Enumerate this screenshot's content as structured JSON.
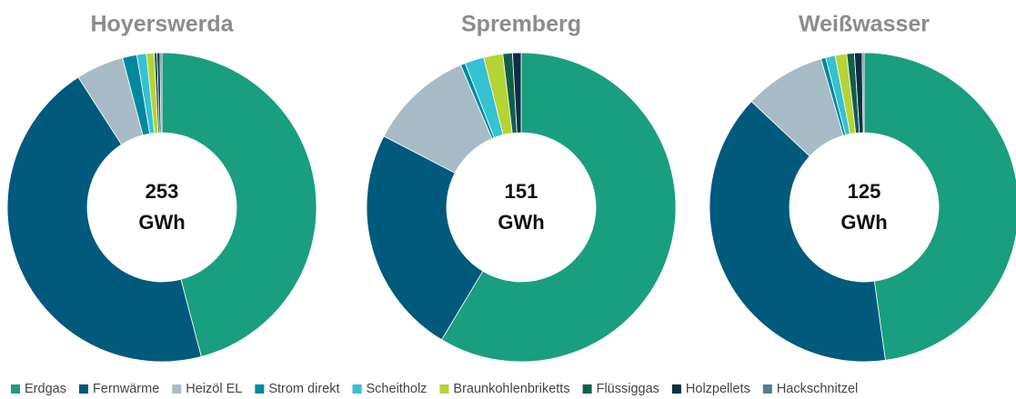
{
  "legend": [
    {
      "name": "Erdgas",
      "color": "#1a9e80"
    },
    {
      "name": "Fernwärme",
      "color": "#005a7c"
    },
    {
      "name": "Heizöl EL",
      "color": "#a7bcc7"
    },
    {
      "name": "Strom direkt",
      "color": "#00889f"
    },
    {
      "name": "Scheitholz",
      "color": "#35c2d2"
    },
    {
      "name": "Braunkohlenbriketts",
      "color": "#b6d436"
    },
    {
      "name": "Flüssiggas",
      "color": "#0f5e4b"
    },
    {
      "name": "Holzpellets",
      "color": "#0b2e44"
    },
    {
      "name": "Hackschnitzel",
      "color": "#5b7b8b"
    }
  ],
  "chart_data": [
    {
      "type": "donut",
      "title": "Hoyerswerda",
      "center_value": 253,
      "center_unit": "GWh",
      "values": [
        45.9,
        45,
        5,
        1.5,
        1,
        0.8,
        0.3,
        0.3,
        0.2
      ]
    },
    {
      "type": "donut",
      "title": "Spremberg",
      "center_value": 151,
      "center_unit": "GWh",
      "values": [
        58.6,
        24,
        11,
        0.5,
        2,
        2,
        1,
        0.9,
        0
      ]
    },
    {
      "type": "donut",
      "title": "Weißwasser",
      "center_value": 125,
      "center_unit": "GWh",
      "values": [
        47.8,
        39.2,
        8.5,
        0.5,
        1,
        1.2,
        0.8,
        0.8,
        0.2
      ]
    }
  ]
}
